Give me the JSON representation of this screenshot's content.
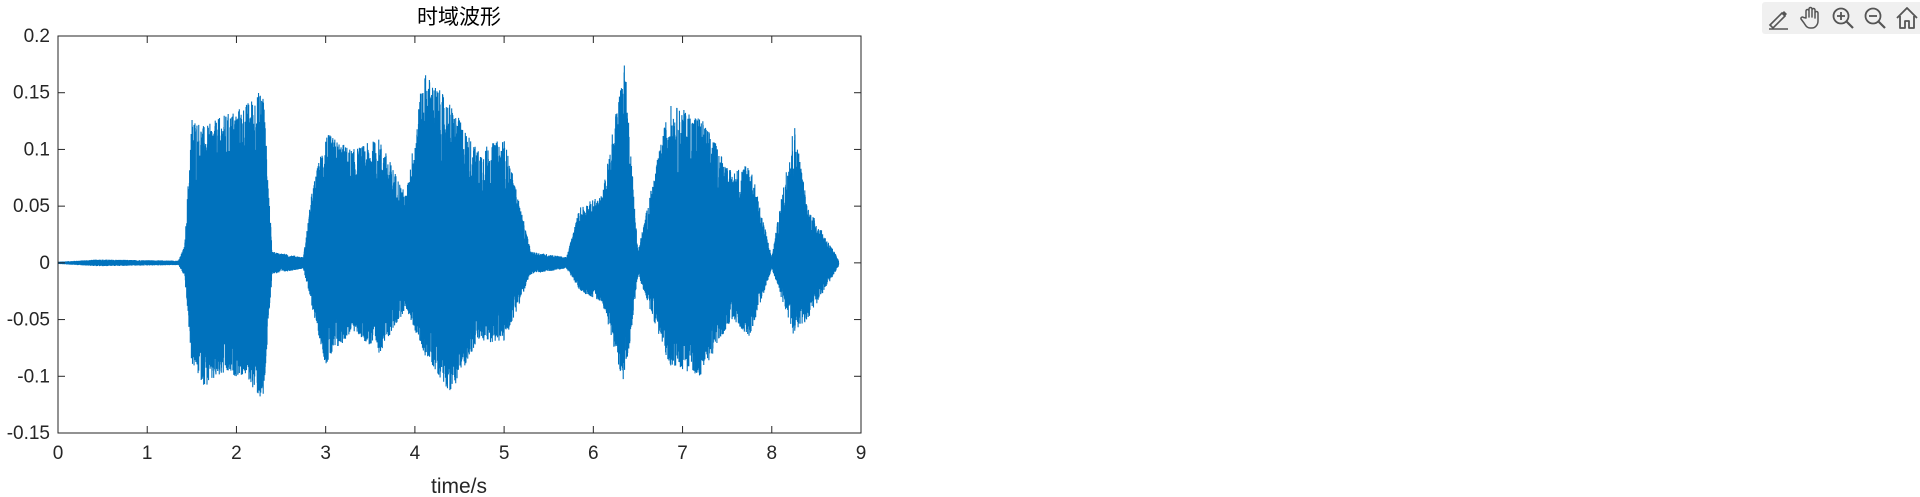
{
  "toolbar": {
    "items": [
      {
        "name": "brush-icon"
      },
      {
        "name": "pan-hand-icon"
      },
      {
        "name": "zoom-in-icon"
      },
      {
        "name": "zoom-out-icon"
      },
      {
        "name": "home-icon"
      }
    ]
  },
  "chart_data": {
    "type": "line",
    "title": "时域波形",
    "xlabel": "time/s",
    "ylabel": "",
    "xlim": [
      0,
      9
    ],
    "ylim": [
      -0.15,
      0.2
    ],
    "xticks": [
      "0",
      "1",
      "2",
      "3",
      "4",
      "5",
      "6",
      "7",
      "8",
      "9"
    ],
    "yticks": [
      "0.2",
      "0.15",
      "0.1",
      "0.05",
      "0",
      "-0.05",
      "-0.1",
      "-0.15"
    ],
    "grid": false,
    "color": "#0072BD",
    "series": [
      {
        "name": "",
        "envelope_points": [
          {
            "t": 0.0,
            "max": 0.001,
            "min": -0.001
          },
          {
            "t": 0.45,
            "max": 0.003,
            "min": -0.003
          },
          {
            "t": 1.35,
            "max": 0.002,
            "min": -0.002
          },
          {
            "t": 1.42,
            "max": 0.015,
            "min": -0.012
          },
          {
            "t": 1.5,
            "max": 0.13,
            "min": -0.09
          },
          {
            "t": 1.65,
            "max": 0.12,
            "min": -0.11
          },
          {
            "t": 1.85,
            "max": 0.13,
            "min": -0.1
          },
          {
            "t": 2.1,
            "max": 0.14,
            "min": -0.1
          },
          {
            "t": 2.3,
            "max": 0.155,
            "min": -0.125
          },
          {
            "t": 2.4,
            "max": 0.01,
            "min": -0.01
          },
          {
            "t": 2.75,
            "max": 0.005,
            "min": -0.005
          },
          {
            "t": 2.85,
            "max": 0.065,
            "min": -0.04
          },
          {
            "t": 3.0,
            "max": 0.115,
            "min": -0.09
          },
          {
            "t": 3.3,
            "max": 0.1,
            "min": -0.06
          },
          {
            "t": 3.6,
            "max": 0.11,
            "min": -0.08
          },
          {
            "t": 3.9,
            "max": 0.06,
            "min": -0.04
          },
          {
            "t": 4.1,
            "max": 0.17,
            "min": -0.08
          },
          {
            "t": 4.4,
            "max": 0.14,
            "min": -0.115
          },
          {
            "t": 4.7,
            "max": 0.1,
            "min": -0.07
          },
          {
            "t": 5.0,
            "max": 0.11,
            "min": -0.07
          },
          {
            "t": 5.3,
            "max": 0.01,
            "min": -0.01
          },
          {
            "t": 5.7,
            "max": 0.005,
            "min": -0.005
          },
          {
            "t": 5.85,
            "max": 0.05,
            "min": -0.025
          },
          {
            "t": 6.1,
            "max": 0.06,
            "min": -0.035
          },
          {
            "t": 6.35,
            "max": 0.18,
            "min": -0.11
          },
          {
            "t": 6.5,
            "max": 0.01,
            "min": -0.01
          },
          {
            "t": 6.85,
            "max": 0.14,
            "min": -0.09
          },
          {
            "t": 7.2,
            "max": 0.13,
            "min": -0.1
          },
          {
            "t": 7.55,
            "max": 0.08,
            "min": -0.05
          },
          {
            "t": 7.75,
            "max": 0.09,
            "min": -0.065
          },
          {
            "t": 8.0,
            "max": 0.005,
            "min": -0.005
          },
          {
            "t": 8.25,
            "max": 0.125,
            "min": -0.065
          },
          {
            "t": 8.4,
            "max": 0.05,
            "min": -0.05
          },
          {
            "t": 8.75,
            "max": 0.003,
            "min": -0.003
          }
        ]
      }
    ]
  }
}
